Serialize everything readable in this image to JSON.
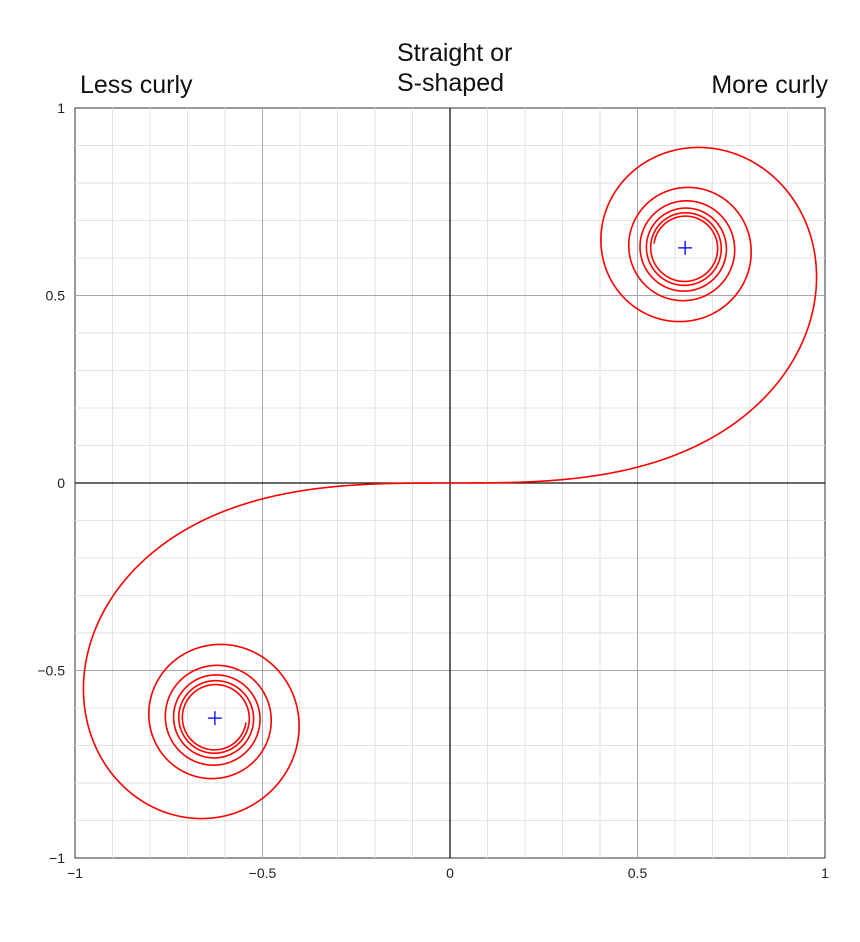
{
  "headers": {
    "left": "Less curly",
    "center": "Straight or\nS-shaped",
    "right": "More curly"
  },
  "chart_data": {
    "type": "line",
    "curve": "Euler spiral (clothoid)",
    "xlim": [
      -1,
      1
    ],
    "ylim": [
      -1,
      1
    ],
    "xticks": [
      -1,
      -0.5,
      0,
      0.5,
      1
    ],
    "yticks": [
      -1,
      -0.5,
      0,
      0.5,
      1
    ],
    "xtick_labels": [
      "−1",
      "−0.5",
      "0",
      "0.5",
      "1"
    ],
    "ytick_labels": [
      "−1",
      "−0.5",
      "0",
      "0.5",
      "1"
    ],
    "grid": true,
    "series": [
      {
        "color": "#ff0000",
        "t_range": [
          -6,
          6
        ]
      }
    ],
    "markers": [
      {
        "x": 0.627,
        "y": 0.627,
        "symbol": "+",
        "color": "#0000ff"
      },
      {
        "x": -0.627,
        "y": -0.627,
        "symbol": "+",
        "color": "#0000ff"
      }
    ]
  }
}
